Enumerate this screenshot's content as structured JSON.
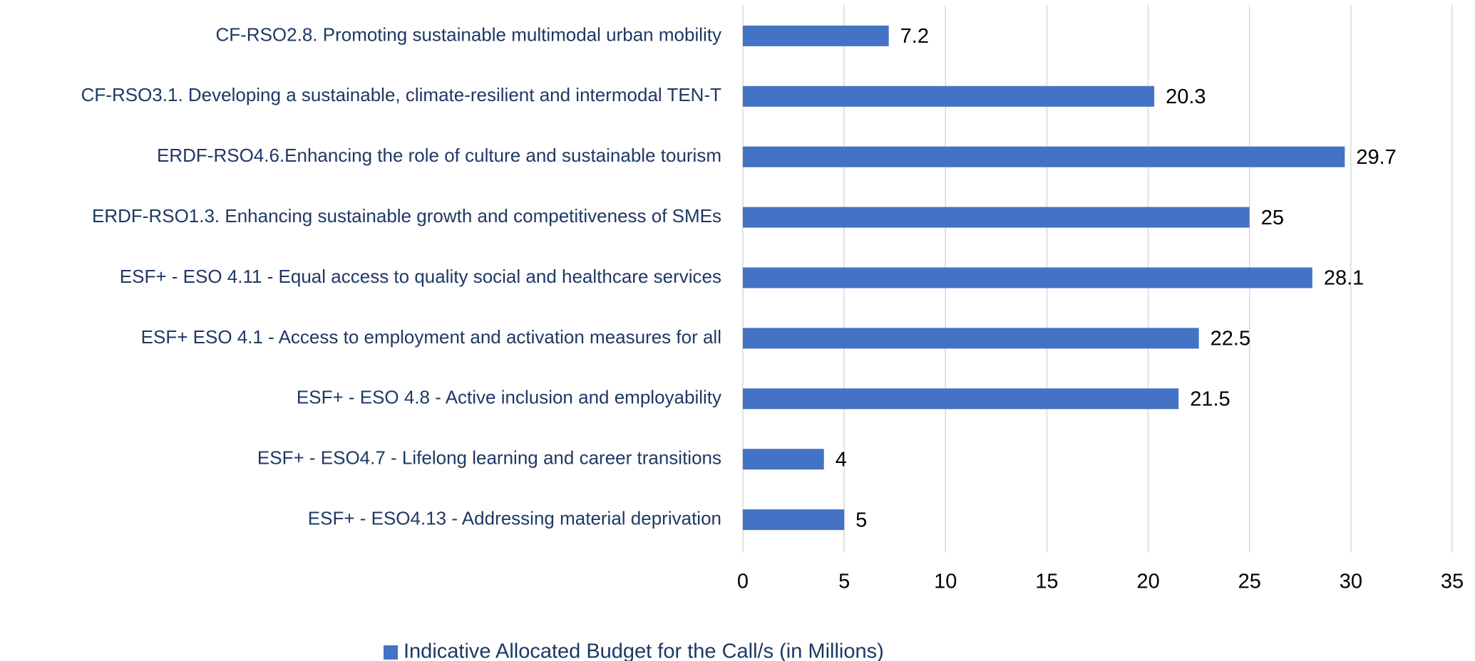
{
  "chart_data": {
    "type": "bar",
    "orientation": "horizontal",
    "categories": [
      "CF-RSO2.8. Promoting sustainable multimodal urban mobility",
      "CF-RSO3.1. Developing a sustainable, climate-resilient and intermodal TEN-T",
      "ERDF-RSO4.6.Enhancing the role of culture and sustainable tourism",
      "ERDF-RSO1.3. Enhancing sustainable growth and competitiveness of SMEs",
      "ESF+ - ESO 4.11 - Equal access to quality social and healthcare services",
      "ESF+ ESO 4.1 - Access to employment and activation measures for all",
      "ESF+ - ESO 4.8 - Active inclusion and employability",
      "ESF+ - ESO4.7 - Lifelong learning and career transitions",
      "ESF+ - ESO4.13 - Addressing material deprivation"
    ],
    "series": [
      {
        "name": "Indicative Allocated Budget for the Call/s (in Millions)",
        "color": "#4472c4",
        "values": [
          7.2,
          20.3,
          29.7,
          25,
          28.1,
          22.5,
          21.5,
          4,
          5
        ]
      }
    ],
    "xlim": [
      0,
      35
    ],
    "xticks": [
      0,
      5,
      10,
      15,
      20,
      25,
      30,
      35
    ],
    "grid": true,
    "legend": "bottom"
  }
}
